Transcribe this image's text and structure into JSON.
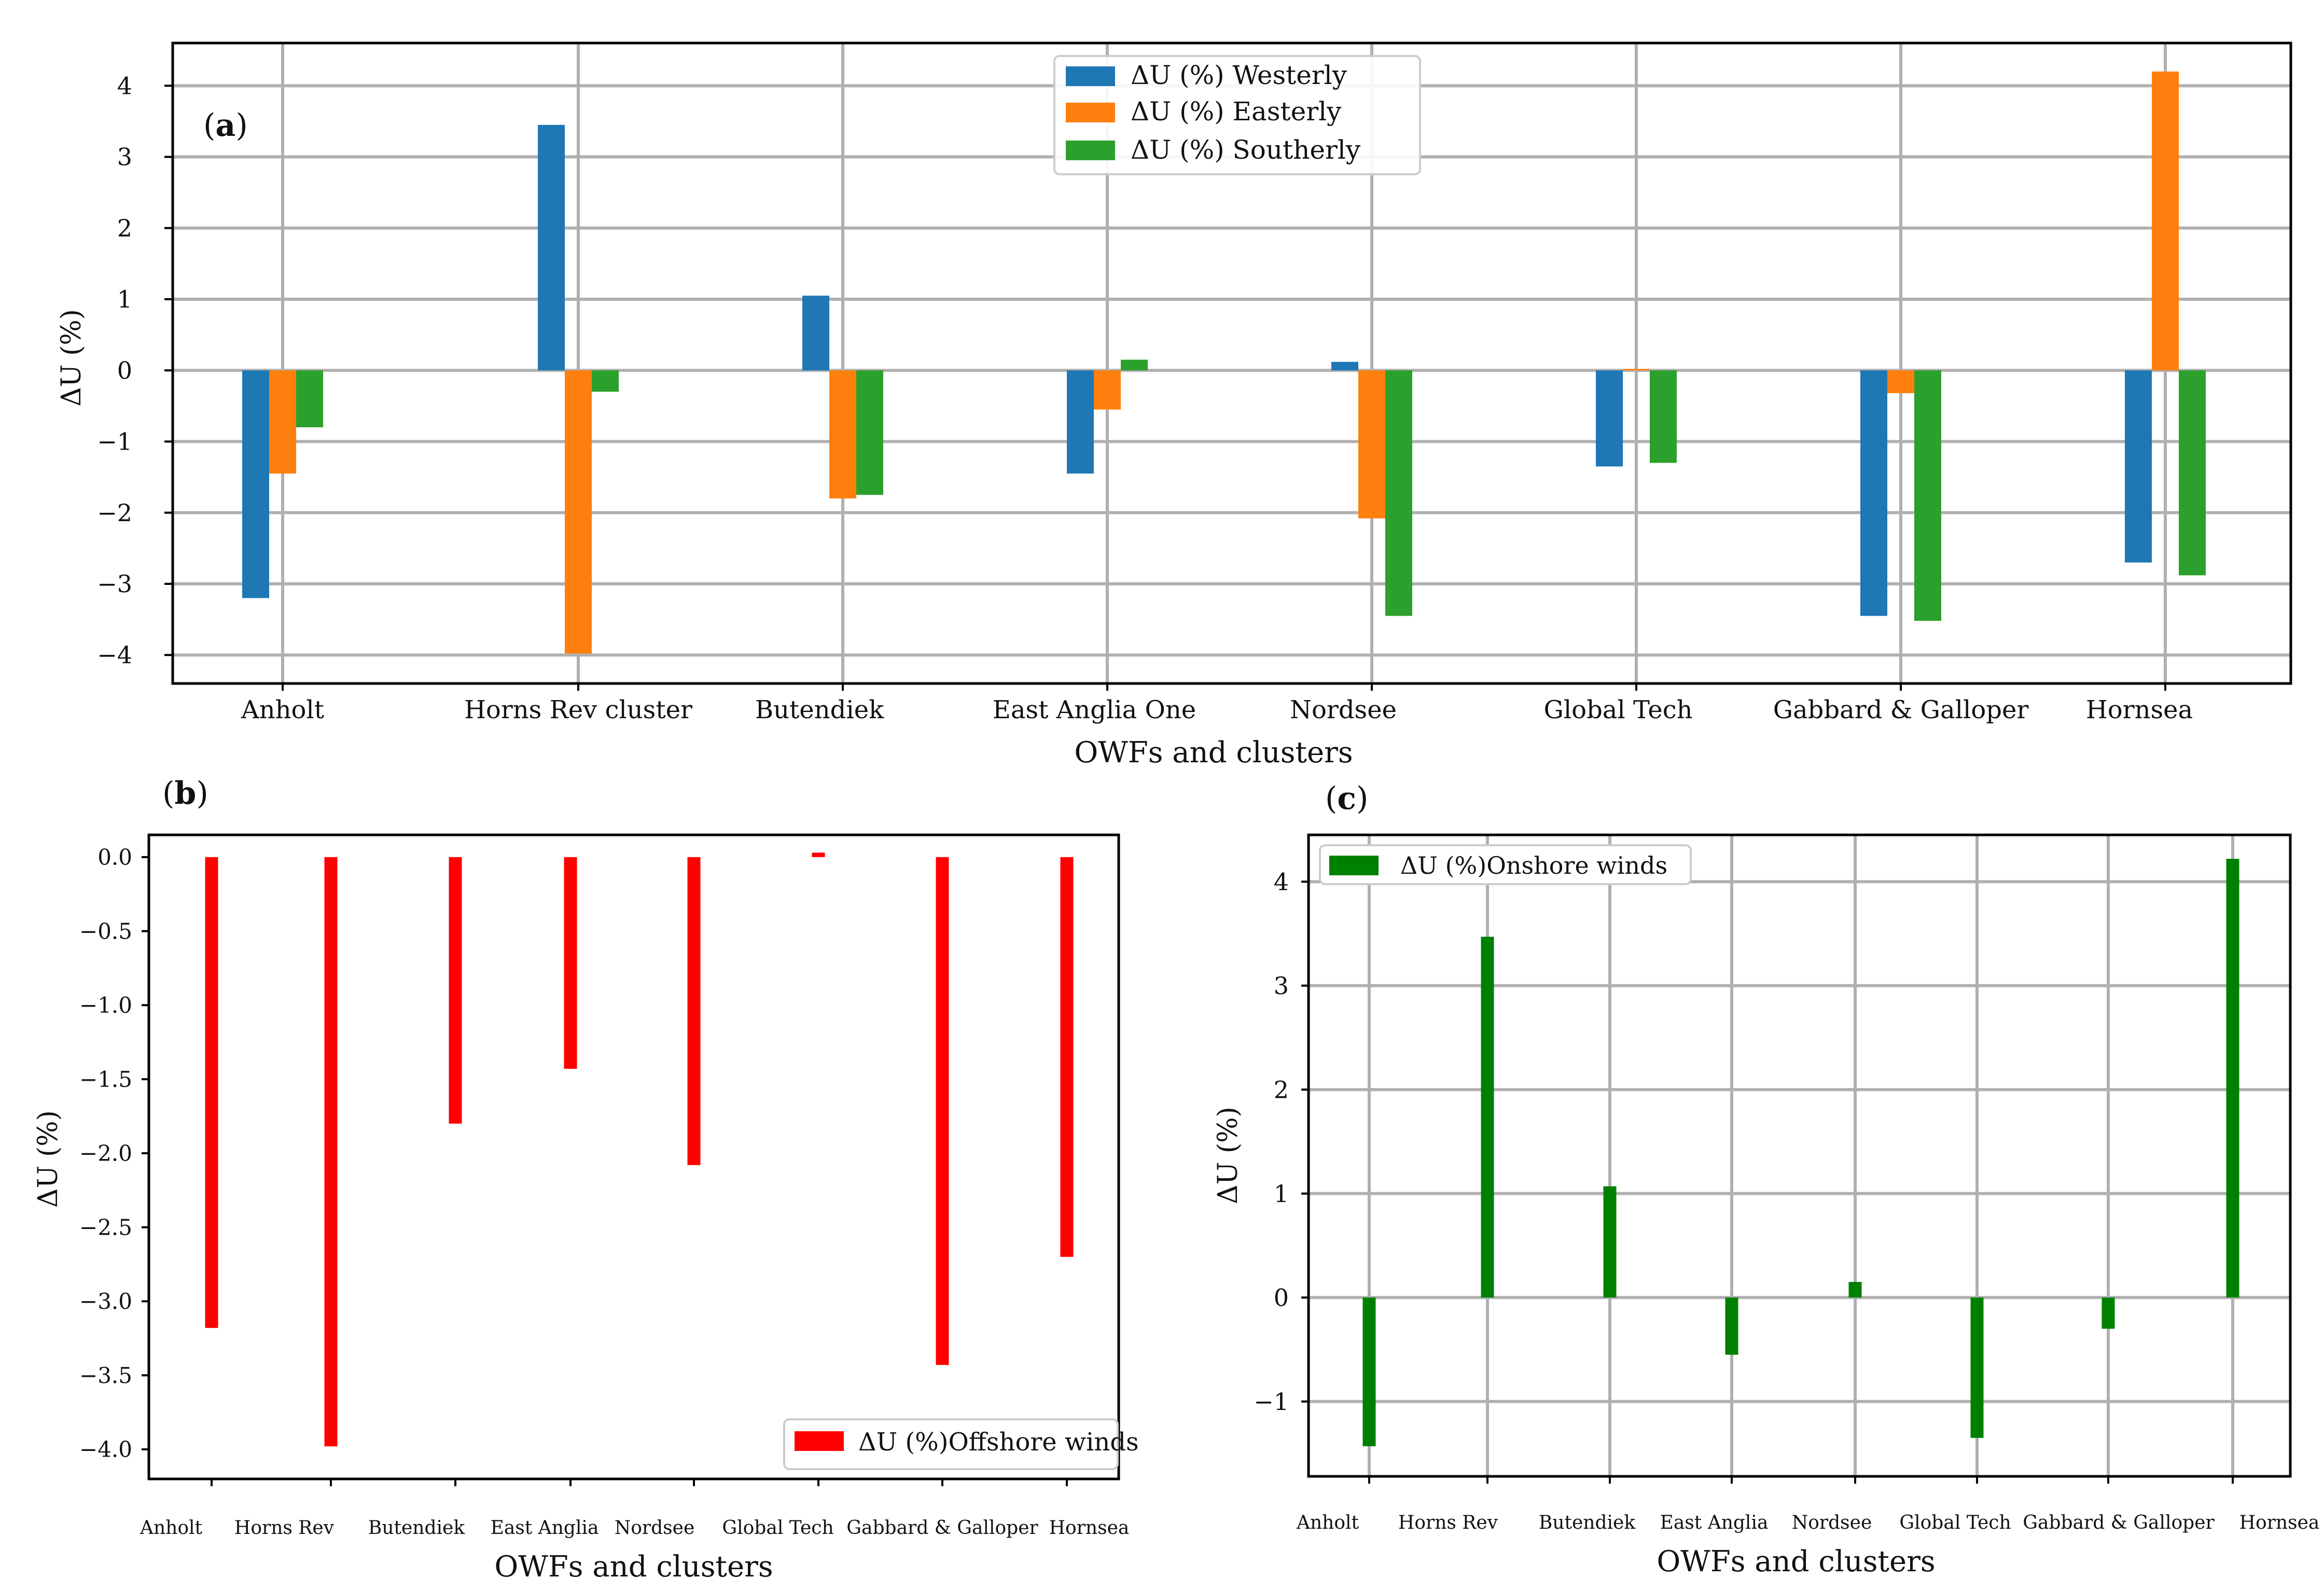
{
  "figure_labels": {
    "a": [
      "(",
      "a",
      ")"
    ],
    "b": [
      "(",
      "b",
      ")"
    ],
    "c": [
      "(",
      "c",
      ")"
    ]
  },
  "chart_data": [
    {
      "id": "a",
      "type": "bar",
      "title": "",
      "xlabel": "OWFs and clusters",
      "ylabel": "ΔU (%)",
      "categories": [
        "Anholt",
        "Horns Rev cluster",
        "Butendiek",
        "East Anglia One",
        "Nordsee",
        "Global Tech",
        "Gabbard & Galloper",
        "Hornsea"
      ],
      "ylim": [
        -4.4,
        4.6
      ],
      "yticks": [
        4,
        3,
        2,
        1,
        0,
        -1,
        -2,
        -3,
        -4
      ],
      "ytick_labels": [
        "4",
        "3",
        "2",
        "1",
        "0",
        "−1",
        "−2",
        "−3",
        "−4"
      ],
      "grid": true,
      "legend_position": "top-center",
      "series": [
        {
          "name": "ΔU (%) Westerly",
          "color": "#1f77b4",
          "values": [
            -3.2,
            3.45,
            1.05,
            -1.45,
            0.12,
            -1.35,
            -3.45,
            -2.7
          ]
        },
        {
          "name": "ΔU (%) Easterly",
          "color": "#ff7f0e",
          "values": [
            -1.45,
            -3.98,
            -1.8,
            -0.55,
            -2.08,
            0.02,
            -0.32,
            4.2
          ]
        },
        {
          "name": "ΔU (%) Southerly",
          "color": "#2ca02c",
          "values": [
            -0.8,
            -0.3,
            -1.75,
            0.15,
            -3.45,
            -1.3,
            -3.52,
            -2.88
          ]
        }
      ]
    },
    {
      "id": "b",
      "type": "bar",
      "title": "",
      "xlabel": "OWFs and clusters",
      "ylabel": "ΔU (%)",
      "categories": [
        "Anholt",
        "Horns Rev",
        "Butendiek",
        "East Anglia",
        "Nordsee",
        "Global Tech",
        "Gabbard & Galloper",
        "Hornsea"
      ],
      "ylim": [
        -4.2,
        0.15
      ],
      "yticks": [
        0.0,
        -0.5,
        -1.0,
        -1.5,
        -2.0,
        -2.5,
        -3.0,
        -3.5,
        -4.0
      ],
      "ytick_labels": [
        "0.0",
        "−0.5",
        "−1.0",
        "−1.5",
        "−2.0",
        "−2.5",
        "−3.0",
        "−3.5",
        "−4.0"
      ],
      "grid": false,
      "legend_position": "bottom-right",
      "series": [
        {
          "name": "ΔU (%)Offshore winds",
          "color": "#ff0000",
          "values": [
            -3.18,
            -3.98,
            -1.8,
            -1.43,
            -2.08,
            0.03,
            -3.43,
            -2.7
          ]
        }
      ]
    },
    {
      "id": "c",
      "type": "bar",
      "title": "",
      "xlabel": "OWFs and clusters",
      "ylabel": "ΔU (%)",
      "categories": [
        "Anholt",
        "Horns Rev",
        "Butendiek",
        "East Anglia",
        "Nordsee",
        "Global Tech",
        "Gabbard & Galloper",
        "Hornsea"
      ],
      "ylim": [
        -1.72,
        4.45
      ],
      "yticks": [
        4,
        3,
        2,
        1,
        0,
        -1
      ],
      "ytick_labels": [
        "4",
        "3",
        "2",
        "1",
        "0",
        "−1"
      ],
      "grid": true,
      "legend_position": "top-left",
      "series": [
        {
          "name": "ΔU (%)Onshore winds",
          "color": "#008000",
          "values": [
            -1.43,
            3.47,
            1.07,
            -0.55,
            0.15,
            -1.35,
            -0.3,
            4.22
          ]
        }
      ]
    }
  ]
}
